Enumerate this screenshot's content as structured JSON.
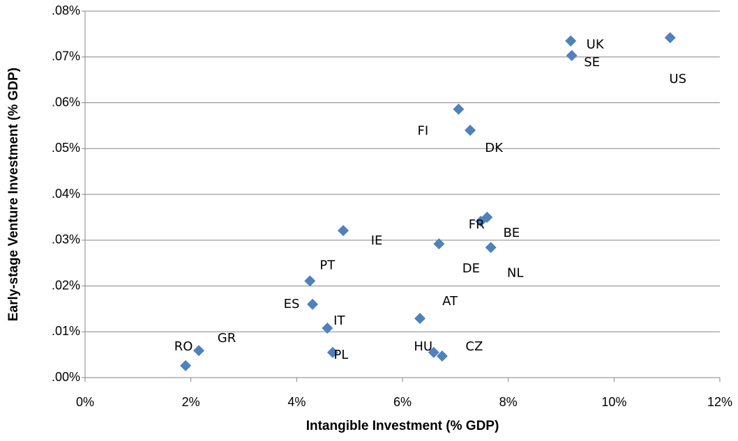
{
  "chart_data": {
    "type": "scatter",
    "x_label": "Intangible Investment (% GDP)",
    "y_label": "Early-stage Venture Investment  (% GDP)",
    "labels": [
      "US",
      "UK",
      "SE",
      "FI",
      "DK",
      "FR",
      "BE",
      "NL",
      "IE",
      "DE",
      "PT",
      "ES",
      "IT",
      "AT",
      "GR",
      "RO",
      "PL",
      "HU",
      "CZ"
    ],
    "x": [
      11.06,
      9.18,
      9.2,
      7.06,
      7.28,
      7.48,
      7.6,
      7.67,
      4.88,
      6.69,
      4.25,
      4.3,
      4.58,
      6.33,
      2.15,
      1.9,
      4.68,
      6.59,
      6.75
    ],
    "values": [
      0.0742,
      0.0735,
      0.0703,
      0.0586,
      0.054,
      0.0341,
      0.035,
      0.0284,
      0.0321,
      0.0292,
      0.0211,
      0.016,
      0.0108,
      0.0129,
      0.0059,
      0.0026,
      0.0055,
      0.0055,
      0.0047
    ],
    "color": "#4f81bd",
    "xlim": [
      0,
      12
    ],
    "xticks": [
      {
        "value": 0,
        "label": "0%"
      },
      {
        "value": 2,
        "label": "2%"
      },
      {
        "value": 4,
        "label": "4%"
      },
      {
        "value": 6,
        "label": "6%"
      },
      {
        "value": 8,
        "label": "8%"
      },
      {
        "value": 10,
        "label": "10%"
      },
      {
        "value": 12,
        "label": "12%"
      }
    ],
    "ylim": [
      0,
      0.08
    ],
    "yticks": [
      {
        "value": 0,
        "label": ".00%"
      },
      {
        "value": 0.01,
        "label": ".01%"
      },
      {
        "value": 0.02,
        "label": ".02%"
      },
      {
        "value": 0.03,
        "label": ".03%"
      },
      {
        "value": 0.04,
        "label": ".04%"
      },
      {
        "value": 0.05,
        "label": ".05%"
      },
      {
        "value": 0.06,
        "label": ".06%"
      },
      {
        "value": 0.07,
        "label": ".07%"
      },
      {
        "value": 0.08,
        "label": ".08%"
      }
    ],
    "grid": true
  }
}
